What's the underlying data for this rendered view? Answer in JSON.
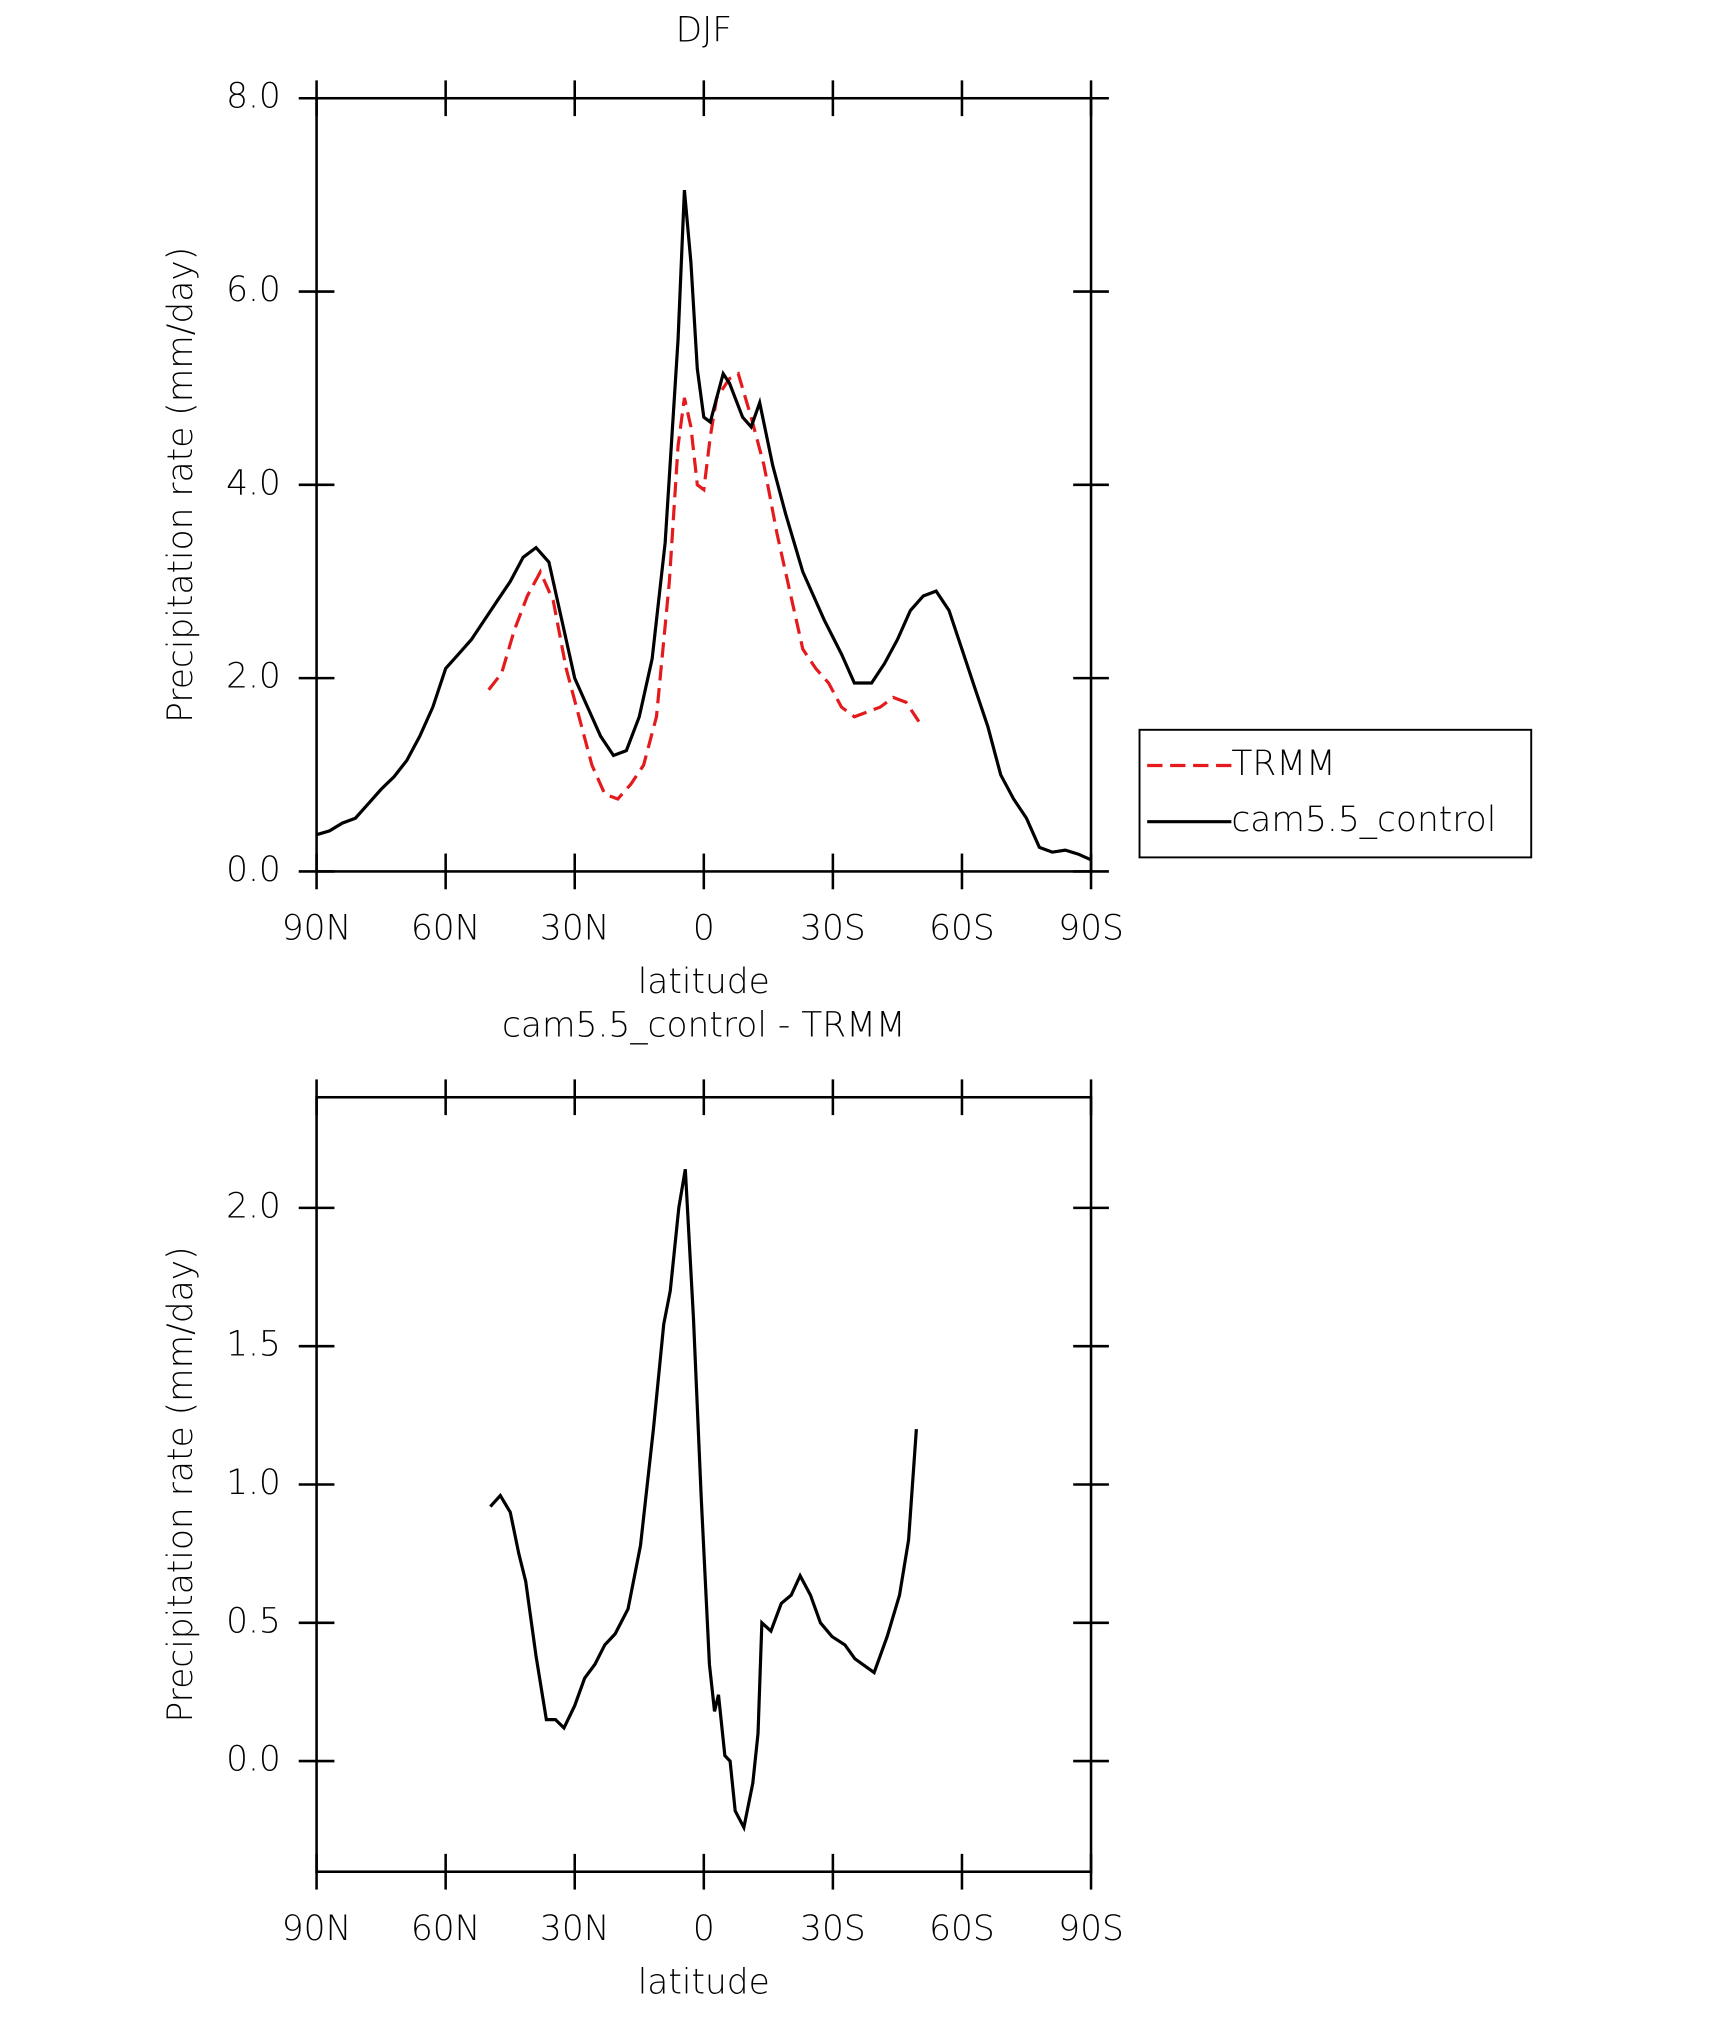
{
  "chart_data": [
    {
      "type": "line",
      "title": "DJF",
      "x_label": "latitude",
      "y_label": "Precipitation rate (mm/day)",
      "xlim": [
        90,
        -90
      ],
      "xticks": [
        {
          "value": 90,
          "label": "90N"
        },
        {
          "value": 60,
          "label": "60N"
        },
        {
          "value": 30,
          "label": "30N"
        },
        0,
        {
          "value": -30,
          "label": "30S"
        },
        {
          "value": -60,
          "label": "60S"
        },
        {
          "value": -90,
          "label": "90S"
        }
      ],
      "ylim": [
        0,
        8
      ],
      "yticks": [
        {
          "value": 0,
          "label": "0.0"
        },
        {
          "value": 2,
          "label": "2.0"
        },
        {
          "value": 4,
          "label": "4.0"
        },
        {
          "value": 6,
          "label": "6.0"
        },
        {
          "value": 8,
          "label": "8.0"
        }
      ],
      "legend": "right",
      "series": [
        {
          "name": "TRMM",
          "color": "#e41a1c",
          "line_style": "dashed",
          "x": [
            50,
            47,
            44,
            41,
            38,
            35,
            32,
            29,
            26,
            23,
            20,
            17,
            14,
            11,
            8,
            6,
            4.5,
            3,
            1.5,
            0,
            -1.5,
            -3,
            -6,
            -8,
            -11,
            -14,
            -17,
            -20,
            -23,
            -26,
            -29,
            -32,
            -35,
            -38,
            -41,
            -44,
            -47,
            -50
          ],
          "values": [
            1.88,
            2.05,
            2.5,
            2.85,
            3.1,
            2.8,
            2.1,
            1.6,
            1.1,
            0.8,
            0.75,
            0.9,
            1.1,
            1.6,
            3.0,
            4.4,
            4.9,
            4.6,
            4.0,
            3.95,
            4.5,
            4.9,
            5.1,
            5.15,
            4.7,
            4.2,
            3.5,
            2.9,
            2.3,
            2.1,
            1.95,
            1.7,
            1.6,
            1.65,
            1.7,
            1.8,
            1.75,
            1.55
          ]
        },
        {
          "name": "cam5.5_control",
          "color": "#000000",
          "line_style": "solid",
          "x": [
            90,
            87,
            84,
            81,
            78,
            75,
            72,
            69,
            66,
            63,
            60,
            57,
            54,
            51,
            48,
            45,
            42,
            39,
            36,
            33,
            30,
            27,
            24,
            21,
            18,
            15,
            12,
            9,
            6,
            4.5,
            3,
            1.5,
            0,
            -1.5,
            -3,
            -4.5,
            -6,
            -9,
            -11,
            -13,
            -16,
            -19,
            -23,
            -28,
            -32,
            -35,
            -39,
            -42,
            -45,
            -48,
            -51,
            -54,
            -57,
            -60,
            -63,
            -66,
            -69,
            -72,
            -75,
            -78,
            -81,
            -84,
            -87,
            -90
          ],
          "values": [
            0.38,
            0.42,
            0.5,
            0.55,
            0.7,
            0.85,
            0.98,
            1.15,
            1.4,
            1.7,
            2.1,
            2.25,
            2.4,
            2.6,
            2.8,
            3.0,
            3.25,
            3.35,
            3.2,
            2.6,
            2.0,
            1.7,
            1.4,
            1.2,
            1.25,
            1.6,
            2.2,
            3.4,
            5.5,
            7.05,
            6.3,
            5.2,
            4.7,
            4.65,
            4.9,
            5.15,
            5.05,
            4.7,
            4.6,
            4.85,
            4.2,
            3.7,
            3.1,
            2.6,
            2.25,
            1.95,
            1.95,
            2.15,
            2.4,
            2.7,
            2.85,
            2.9,
            2.7,
            2.3,
            1.9,
            1.5,
            1.0,
            0.75,
            0.55,
            0.25,
            0.2,
            0.22,
            0.18,
            0.12
          ]
        }
      ]
    },
    {
      "type": "line",
      "title": "cam5.5_control - TRMM",
      "x_label": "latitude",
      "y_label": "Precipitation rate (mm/day)",
      "xlim": [
        90,
        -90
      ],
      "xticks": [
        {
          "value": 90,
          "label": "90N"
        },
        {
          "value": 60,
          "label": "60N"
        },
        {
          "value": 30,
          "label": "30N"
        },
        0,
        {
          "value": -30,
          "label": "30S"
        },
        {
          "value": -60,
          "label": "60S"
        },
        {
          "value": -90,
          "label": "90S"
        }
      ],
      "ylim": [
        -0.4,
        2.4
      ],
      "yticks": [
        {
          "value": 0,
          "label": "0.0"
        },
        0.5,
        {
          "value": 1,
          "label": "1.0"
        },
        1.5,
        {
          "value": 2,
          "label": "2.0"
        }
      ],
      "series": [
        {
          "color": "#000000",
          "line_style": "solid",
          "x": [
            49.6,
            47.3,
            45,
            43,
            41.4,
            39,
            36.6,
            34.5,
            32.5,
            30,
            27.7,
            25.3,
            23,
            20.6,
            17.6,
            14.7,
            11.7,
            9.3,
            7.8,
            5.8,
            4.3,
            2.4,
            0.6,
            -1.3,
            -2.5,
            -3.4,
            -4.9,
            -6.1,
            -7.3,
            -9.3,
            -11.4,
            -12.6,
            -13.5,
            -15.6,
            -18,
            -20.3,
            -22.4,
            -24.8,
            -27.1,
            -29.8,
            -32.8,
            -35.1,
            -39.6,
            -42.6,
            -45.5,
            -47.6,
            -49.4
          ],
          "values": [
            0.92,
            0.96,
            0.9,
            0.75,
            0.65,
            0.38,
            0.15,
            0.15,
            0.12,
            0.2,
            0.3,
            0.35,
            0.42,
            0.46,
            0.55,
            0.78,
            1.2,
            1.58,
            1.7,
            2.0,
            2.14,
            1.6,
            0.95,
            0.35,
            0.18,
            0.24,
            0.02,
            0.0,
            -0.18,
            -0.24,
            -0.08,
            0.1,
            0.5,
            0.47,
            0.57,
            0.6,
            0.67,
            0.6,
            0.5,
            0.45,
            0.42,
            0.37,
            0.32,
            0.45,
            0.6,
            0.8,
            1.2
          ]
        }
      ]
    }
  ]
}
